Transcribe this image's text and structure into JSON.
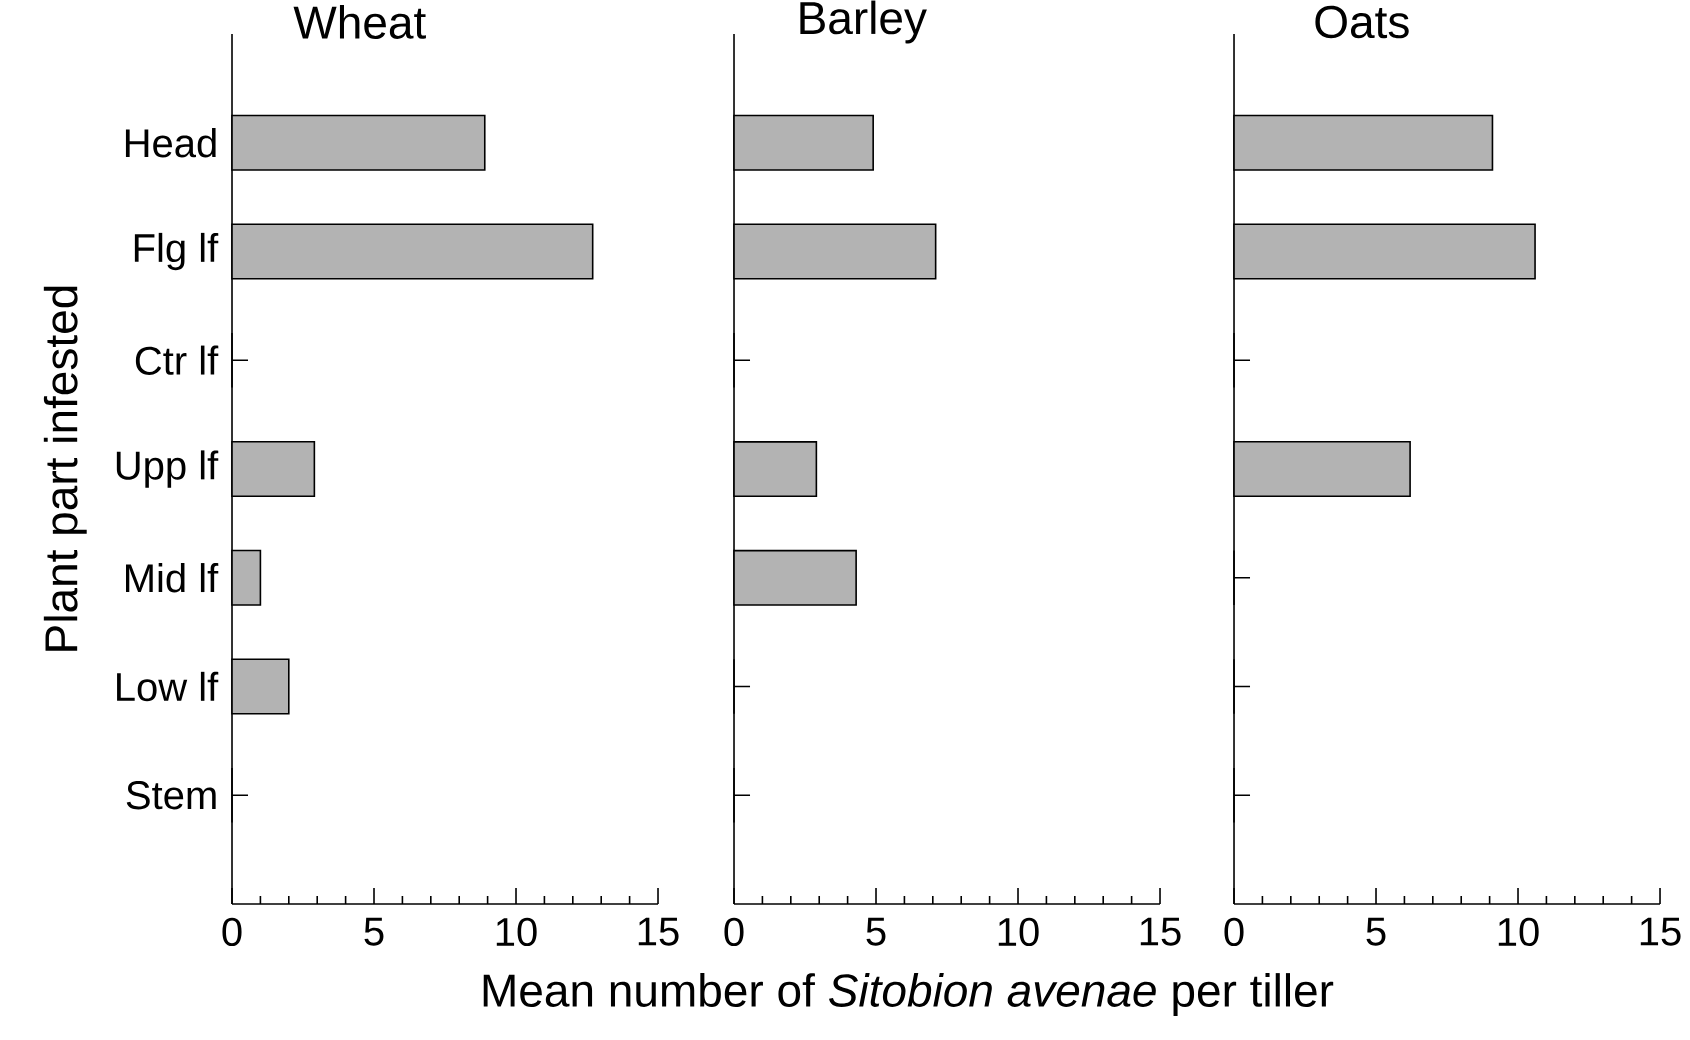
{
  "chart_data": [
    {
      "type": "bar",
      "orientation": "horizontal",
      "title": "Wheat",
      "ylabel": "Plant part infested",
      "categories": [
        "Head",
        "Flg lf",
        "Ctr lf",
        "Upp lf",
        "Mid lf",
        "Low lf",
        "Stem"
      ],
      "values": [
        8.9,
        12.7,
        0,
        2.9,
        1.0,
        2.0,
        0
      ],
      "color": "#b3b3b3",
      "xlim": [
        0,
        15
      ],
      "xticks": [
        0,
        5,
        10,
        15
      ]
    },
    {
      "type": "bar",
      "orientation": "horizontal",
      "title": "Barley",
      "xlabel": "Mean number of *Sitobion avenae* per tiller",
      "categories": [
        null,
        null,
        null,
        null,
        null,
        null,
        null
      ],
      "values": [
        4.9,
        7.1,
        0,
        2.9,
        4.3,
        0,
        0
      ],
      "color": "#b3b3b3",
      "xlim": [
        0,
        15
      ],
      "xticks": [
        0,
        5,
        10,
        15
      ],
      "tick_labels": "x"
    },
    {
      "type": "bar",
      "orientation": "horizontal",
      "title": "Oats",
      "categories": [
        null,
        null,
        null,
        null,
        null,
        null,
        null
      ],
      "values": [
        9.1,
        10.6,
        0,
        6.2,
        0,
        0,
        0
      ],
      "color": "#b3b3b3",
      "xlim": [
        0,
        15
      ],
      "xticks": [
        0,
        5,
        10,
        15
      ],
      "tick_labels": "x"
    }
  ]
}
